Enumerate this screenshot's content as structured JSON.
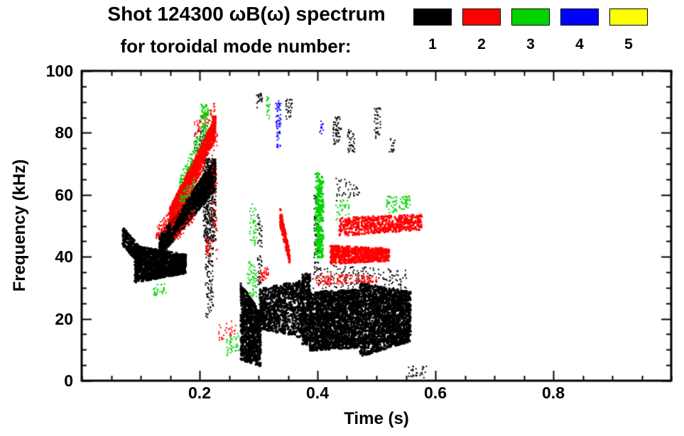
{
  "header": {
    "title": "Shot 124300 ωB(ω) spectrum",
    "subtitle": "for toroidal mode number:"
  },
  "legend": {
    "items": [
      {
        "label": "1",
        "color": "#000000"
      },
      {
        "label": "2",
        "color": "#ff0000"
      },
      {
        "label": "3",
        "color": "#00d400"
      },
      {
        "label": "4",
        "color": "#0000ff"
      },
      {
        "label": "5",
        "color": "#ffff00"
      }
    ]
  },
  "chart_data": {
    "type": "scatter",
    "title": "Shot 124300 ωB(ω) spectrum",
    "subtitle": "for toroidal mode number:",
    "xlabel": "Time (s)",
    "ylabel": "Frequency (kHz)",
    "xlim": [
      0,
      1.0
    ],
    "ylim": [
      0,
      100
    ],
    "xticks": [
      {
        "v": 0.2,
        "label": "0.2"
      },
      {
        "v": 0.4,
        "label": "0.4"
      },
      {
        "v": 0.6,
        "label": "0.6"
      },
      {
        "v": 0.8,
        "label": "0.8"
      }
    ],
    "yticks": [
      {
        "v": 0,
        "label": "0"
      },
      {
        "v": 20,
        "label": "20"
      },
      {
        "v": 40,
        "label": "40"
      },
      {
        "v": 60,
        "label": "60"
      },
      {
        "v": 80,
        "label": "80"
      },
      {
        "v": 100,
        "label": "100"
      }
    ],
    "xtick_minor": 0.05,
    "ytick_minor": 5,
    "grid": false,
    "legend_position": "top-right",
    "series": [
      {
        "name": "n=1",
        "color": "#000000",
        "clusters": [
          {
            "t": [
              0.068,
              0.1
            ],
            "fl": [
              44,
              37
            ],
            "fh": [
              50,
              43
            ],
            "n": 260,
            "s": 3
          },
          {
            "t": [
              0.088,
              0.175
            ],
            "fl": [
              32,
              35
            ],
            "fh": [
              44,
              41
            ],
            "n": 1700,
            "s": 3
          },
          {
            "t": [
              0.13,
              0.225
            ],
            "fl": [
              40,
              62
            ],
            "fh": [
              47,
              72
            ],
            "n": 1700,
            "s": 3
          },
          {
            "t": [
              0.205,
              0.227
            ],
            "fl": [
              45,
              45
            ],
            "fh": [
              72,
              72
            ],
            "n": 450,
            "s": 2
          },
          {
            "t": [
              0.209,
              0.222
            ],
            "fl": [
              20,
              22
            ],
            "fh": [
              45,
              45
            ],
            "n": 110,
            "s": 2
          },
          {
            "t": [
              0.19,
              0.212
            ],
            "fl": [
              74,
              76
            ],
            "fh": [
              80,
              83
            ],
            "n": 45,
            "s": 2
          },
          {
            "t": [
              0.268,
              0.302
            ],
            "fl": [
              7,
              5
            ],
            "fh": [
              32,
              22
            ],
            "n": 950,
            "s": 3
          },
          {
            "t": [
              0.3,
              0.375
            ],
            "fl": [
              17,
              14
            ],
            "fh": [
              30,
              33
            ],
            "n": 950,
            "s": 3
          },
          {
            "t": [
              0.372,
              0.386
            ],
            "fl": [
              12,
              12
            ],
            "fh": [
              35,
              35
            ],
            "n": 300,
            "s": 3
          },
          {
            "t": [
              0.385,
              0.47
            ],
            "fl": [
              10,
              11
            ],
            "fh": [
              29,
              30
            ],
            "n": 1900,
            "s": 3
          },
          {
            "t": [
              0.47,
              0.556
            ],
            "fl": [
              8,
              13
            ],
            "fh": [
              32,
              29
            ],
            "n": 1900,
            "s": 3
          },
          {
            "t": [
              0.39,
              0.55
            ],
            "fl": [
              30,
              30
            ],
            "fh": [
              38,
              36
            ],
            "n": 170,
            "s": 2
          },
          {
            "t": [
              0.295,
              0.305
            ],
            "fl": [
              88,
              90
            ],
            "fh": [
              94,
              93
            ],
            "n": 26,
            "s": 2
          },
          {
            "t": [
              0.345,
              0.356
            ],
            "fl": [
              84,
              86
            ],
            "fh": [
              91,
              92
            ],
            "n": 30,
            "s": 2
          },
          {
            "t": [
              0.425,
              0.44
            ],
            "fl": [
              76,
              78
            ],
            "fh": [
              85,
              86
            ],
            "n": 55,
            "s": 2
          },
          {
            "t": [
              0.45,
              0.462
            ],
            "fl": [
              74,
              74
            ],
            "fh": [
              82,
              80
            ],
            "n": 40,
            "s": 2
          },
          {
            "t": [
              0.495,
              0.506
            ],
            "fl": [
              78,
              80
            ],
            "fh": [
              90,
              88
            ],
            "n": 40,
            "s": 2
          },
          {
            "t": [
              0.52,
              0.531
            ],
            "fl": [
              74,
              74
            ],
            "fh": [
              79,
              78
            ],
            "n": 16,
            "s": 2
          },
          {
            "t": [
              0.553,
              0.585
            ],
            "fl": [
              1,
              1
            ],
            "fh": [
              5,
              5
            ],
            "n": 30,
            "s": 2
          },
          {
            "t": [
              0.393,
              0.401
            ],
            "fl": [
              35,
              35
            ],
            "fh": [
              60,
              60
            ],
            "n": 70,
            "s": 2
          },
          {
            "t": [
              0.297,
              0.305
            ],
            "fl": [
              30,
              32
            ],
            "fh": [
              55,
              50
            ],
            "n": 55,
            "s": 2
          },
          {
            "t": [
              0.43,
              0.47
            ],
            "fl": [
              58,
              60
            ],
            "fh": [
              66,
              64
            ],
            "n": 40,
            "s": 2
          }
        ]
      },
      {
        "name": "n=2",
        "color": "#ff0000",
        "clusters": [
          {
            "t": [
              0.125,
              0.149
            ],
            "fl": [
              46,
              50
            ],
            "fh": [
              50,
              55
            ],
            "n": 70,
            "s": 2
          },
          {
            "t": [
              0.148,
              0.225
            ],
            "fl": [
              52,
              78
            ],
            "fh": [
              56,
              86
            ],
            "n": 1150,
            "s": 3
          },
          {
            "t": [
              0.15,
              0.21
            ],
            "fl": [
              49,
              70
            ],
            "fh": [
              52,
              74
            ],
            "n": 280,
            "s": 2
          },
          {
            "t": [
              0.19,
              0.225
            ],
            "fl": [
              79,
              85
            ],
            "fh": [
              84,
              90
            ],
            "n": 70,
            "s": 2
          },
          {
            "t": [
              0.218,
              0.229
            ],
            "fl": [
              38,
              38
            ],
            "fh": [
              80,
              80
            ],
            "n": 60,
            "s": 2
          },
          {
            "t": [
              0.23,
              0.262
            ],
            "fl": [
              13,
              15
            ],
            "fh": [
              18,
              20
            ],
            "n": 30,
            "s": 2
          },
          {
            "t": [
              0.3,
              0.316
            ],
            "fl": [
              32,
              33
            ],
            "fh": [
              36,
              37
            ],
            "n": 40,
            "s": 2
          },
          {
            "t": [
              0.335,
              0.351
            ],
            "fl": [
              50,
              38
            ],
            "fh": [
              56,
              42
            ],
            "n": 190,
            "s": 3
          },
          {
            "t": [
              0.435,
              0.575
            ],
            "fl": [
              47,
              49
            ],
            "fh": [
              53,
              54
            ],
            "n": 480,
            "s": 3
          },
          {
            "t": [
              0.42,
              0.52
            ],
            "fl": [
              38,
              39
            ],
            "fh": [
              44,
              43
            ],
            "n": 620,
            "s": 3
          },
          {
            "t": [
              0.395,
              0.5
            ],
            "fl": [
              31,
              32
            ],
            "fh": [
              35,
              34
            ],
            "n": 150,
            "s": 2
          },
          {
            "t": [
              0.21,
              0.216
            ],
            "fl": [
              40,
              40
            ],
            "fh": [
              46,
              46
            ],
            "n": 26,
            "s": 2
          },
          {
            "t": [
              0.155,
              0.19
            ],
            "fl": [
              44,
              52
            ],
            "fh": [
              47,
              56
            ],
            "n": 60,
            "s": 2
          }
        ]
      },
      {
        "name": "n=3",
        "color": "#00d400",
        "clusters": [
          {
            "t": [
              0.165,
              0.215
            ],
            "fl": [
              62,
              82
            ],
            "fh": [
              66,
              88
            ],
            "n": 120,
            "s": 2
          },
          {
            "t": [
              0.2,
              0.213
            ],
            "fl": [
              84,
              86
            ],
            "fh": [
              90,
              89
            ],
            "n": 48,
            "s": 2
          },
          {
            "t": [
              0.165,
              0.19
            ],
            "fl": [
              56,
              62
            ],
            "fh": [
              60,
              66
            ],
            "n": 40,
            "s": 2
          },
          {
            "t": [
              0.12,
              0.142
            ],
            "fl": [
              27,
              28
            ],
            "fh": [
              31,
              32
            ],
            "n": 28,
            "s": 2
          },
          {
            "t": [
              0.245,
              0.266
            ],
            "fl": [
              8,
              10
            ],
            "fh": [
              14,
              16
            ],
            "n": 40,
            "s": 2
          },
          {
            "t": [
              0.28,
              0.296
            ],
            "fl": [
              28,
              27
            ],
            "fh": [
              40,
              36
            ],
            "n": 60,
            "s": 2
          },
          {
            "t": [
              0.284,
              0.296
            ],
            "fl": [
              44,
              44
            ],
            "fh": [
              60,
              55
            ],
            "n": 40,
            "s": 2
          },
          {
            "t": [
              0.395,
              0.408
            ],
            "fl": [
              40,
              40
            ],
            "fh": [
              68,
              66
            ],
            "n": 230,
            "s": 3
          },
          {
            "t": [
              0.43,
              0.452
            ],
            "fl": [
              52,
              54
            ],
            "fh": [
              58,
              60
            ],
            "n": 30,
            "s": 2
          },
          {
            "t": [
              0.515,
              0.556
            ],
            "fl": [
              54,
              56
            ],
            "fh": [
              60,
              60
            ],
            "n": 80,
            "s": 2
          },
          {
            "t": [
              0.312,
              0.318
            ],
            "fl": [
              84,
              84
            ],
            "fh": [
              92,
              92
            ],
            "n": 20,
            "s": 2
          }
        ]
      },
      {
        "name": "n=4",
        "color": "#0000ff",
        "clusters": [
          {
            "t": [
              0.328,
              0.337
            ],
            "fl": [
              74,
              76
            ],
            "fh": [
              90,
              92
            ],
            "n": 60,
            "s": 2
          },
          {
            "t": [
              0.402,
              0.409
            ],
            "fl": [
              78,
              78
            ],
            "fh": [
              84,
              84
            ],
            "n": 12,
            "s": 2
          }
        ]
      },
      {
        "name": "n=5",
        "color": "#ffff00",
        "clusters": []
      }
    ]
  }
}
